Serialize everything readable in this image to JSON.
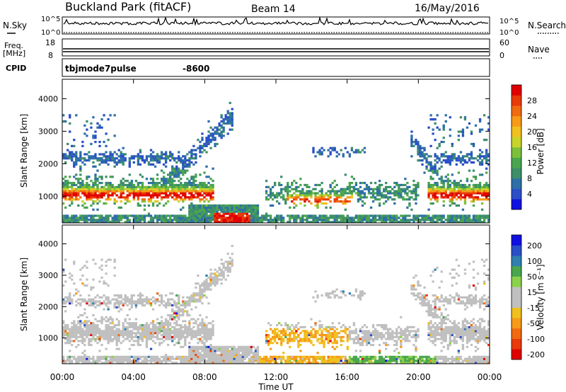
{
  "header": {
    "title": "Buckland Park (fitACF)",
    "beam": "Beam 14",
    "date": "16/May/2016"
  },
  "noise_panel": {
    "left_label": "N.Sky",
    "right_label": "N.Search",
    "tick_top": "10^5",
    "tick_bottom": "10^0"
  },
  "freq_panel": {
    "left_label_1": "Freq.",
    "left_label_2": "[MHz]",
    "left_ticks": [
      "18",
      "8"
    ],
    "right_label": "Nave",
    "right_ticks": [
      "60",
      "0"
    ]
  },
  "cpid": {
    "label": "CPID",
    "mode": "tbjmode7pulse",
    "value": "-8600"
  },
  "chart_data": [
    {
      "type": "heatmap",
      "panel": "power",
      "ylabel": "Slant Range [km]",
      "ylim": [
        180,
        4600
      ],
      "yticks": [
        1000,
        2000,
        3000,
        4000
      ],
      "ytick_labels": [
        "1000",
        "2000",
        "3000",
        "4000"
      ],
      "xlim_hours": [
        0,
        24
      ],
      "colorbar": {
        "label": "Power [dB]",
        "range": [
          0,
          31
        ],
        "ticks": [
          "4",
          "8",
          "12",
          "16",
          "20",
          "24",
          "28"
        ],
        "colors": [
          "#1010e0",
          "#2a4fc8",
          "#2f6fa8",
          "#3d8f6a",
          "#4aa64e",
          "#7cbf3a",
          "#c8d42a",
          "#f0c020",
          "#f79a18",
          "#f06a10",
          "#e83a0a",
          "#e00000"
        ]
      }
    },
    {
      "type": "heatmap",
      "panel": "velocity",
      "ylabel": "Slant Range [km]",
      "ylim": [
        180,
        4600
      ],
      "yticks": [
        1000,
        2000,
        3000,
        4000
      ],
      "ytick_labels": [
        "1000",
        "2000",
        "3000",
        "4000"
      ],
      "xlim_hours": [
        0,
        24
      ],
      "xticks": [
        "00:00",
        "04:00",
        "08:00",
        "12:00",
        "16:00",
        "20:00",
        "00:00"
      ],
      "xlabel": "Time UT",
      "colorbar": {
        "label": "Velocity [m s⁻¹]",
        "range": [
          -250,
          250
        ],
        "ticks": [
          "200",
          "100",
          "50",
          "15",
          "-15",
          "-50",
          "-100",
          "-200"
        ],
        "colors": [
          "#e00000",
          "#e83a0a",
          "#f06a10",
          "#f79a18",
          "#f0c020",
          "#c0c0c0",
          "#c0c0c0",
          "#8bd14a",
          "#4aa64e",
          "#2f7fb0",
          "#2a4fc8",
          "#1010e0"
        ]
      }
    }
  ]
}
